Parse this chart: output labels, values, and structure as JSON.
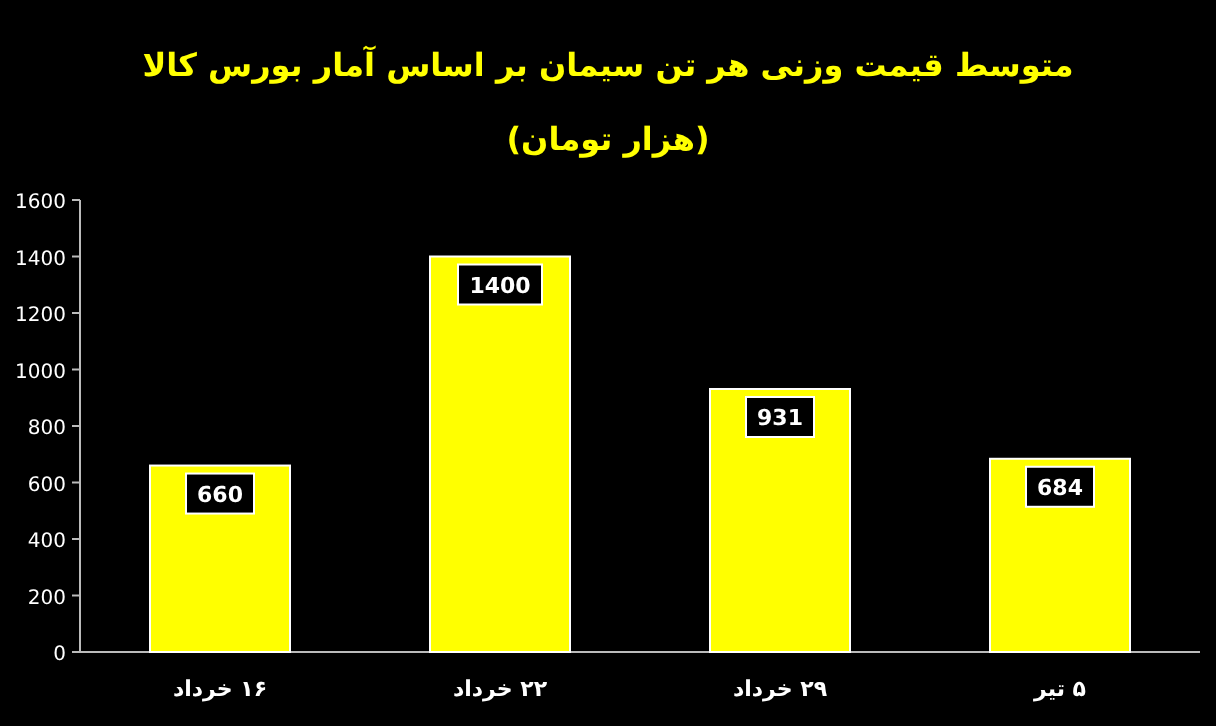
{
  "chart_data": {
    "type": "bar",
    "title": "متوسط قیمت وزنی هر تن سیمان بر اساس آمار بورس کالا",
    "subtitle": "(هزار تومان)",
    "categories": [
      "۱۶ خرداد",
      "۲۲ خرداد",
      "۲۹ خرداد",
      "۵ تیر"
    ],
    "values": [
      660,
      1400,
      931,
      684
    ],
    "color": "#ffff00",
    "ylim": [
      0,
      1600
    ],
    "yticks": [
      0,
      200,
      400,
      600,
      800,
      1000,
      1200,
      1400,
      1600
    ],
    "data_labels": true
  }
}
